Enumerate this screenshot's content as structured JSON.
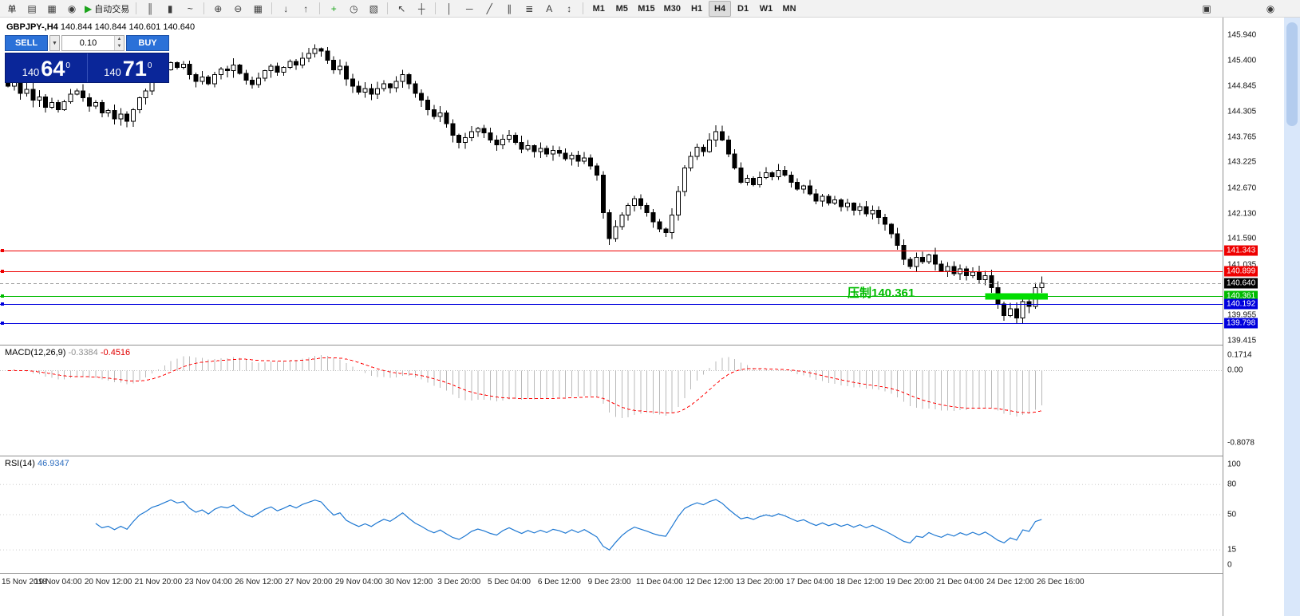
{
  "toolbar": {
    "groups": [
      {
        "items": [
          {
            "name": "orders-menu",
            "label": "单"
          },
          {
            "name": "new-order-icon",
            "glyph": "▤"
          },
          {
            "name": "chart-window-icon",
            "glyph": "▦"
          },
          {
            "name": "info-icon",
            "glyph": "◉"
          },
          {
            "name": "autotrading-button",
            "glyph": "▶",
            "glyph_color": "#1ca41c",
            "label": "自动交易"
          }
        ]
      },
      {
        "items": [
          {
            "name": "bar-chart-icon",
            "glyph": "║"
          },
          {
            "name": "candlestick-icon",
            "glyph": "▮"
          },
          {
            "name": "line-chart-icon",
            "glyph": "~"
          }
        ]
      },
      {
        "items": [
          {
            "name": "zoom-in-icon",
            "glyph": "⊕"
          },
          {
            "name": "zoom-out-icon",
            "glyph": "⊖"
          },
          {
            "name": "tile-windows-icon",
            "glyph": "▦"
          }
        ]
      },
      {
        "items": [
          {
            "name": "arrange-down-icon",
            "glyph": "↓"
          },
          {
            "name": "arrange-up-icon",
            "glyph": "↑"
          }
        ]
      },
      {
        "items": [
          {
            "name": "indicators-icon",
            "glyph": "+",
            "glyph_color": "#1ca41c"
          },
          {
            "name": "periods-icon",
            "glyph": "◷"
          },
          {
            "name": "templates-icon",
            "glyph": "▧"
          }
        ]
      },
      {
        "items": [
          {
            "name": "cursor-icon",
            "glyph": "↖"
          },
          {
            "name": "crosshair-icon",
            "glyph": "┼"
          }
        ]
      },
      {
        "items": [
          {
            "name": "vertical-line-icon",
            "glyph": "│"
          },
          {
            "name": "horizontal-line-icon",
            "glyph": "─"
          },
          {
            "name": "trendline-icon",
            "glyph": "╱"
          },
          {
            "name": "channel-icon",
            "glyph": "∥"
          },
          {
            "name": "fibonacci-icon",
            "glyph": "≣"
          },
          {
            "name": "text-icon",
            "glyph": "A"
          },
          {
            "name": "arrows-icon",
            "glyph": "↕"
          }
        ]
      },
      {
        "items": [
          {
            "name": "timeframe-m1",
            "label": "M1",
            "tf": true
          },
          {
            "name": "timeframe-m5",
            "label": "M5",
            "tf": true
          },
          {
            "name": "timeframe-m15",
            "label": "M15",
            "tf": true
          },
          {
            "name": "timeframe-m30",
            "label": "M30",
            "tf": true
          },
          {
            "name": "timeframe-h1",
            "label": "H1",
            "tf": true
          },
          {
            "name": "timeframe-h4",
            "label": "H4",
            "tf": true,
            "active": true
          },
          {
            "name": "timeframe-d1",
            "label": "D1",
            "tf": true
          },
          {
            "name": "timeframe-w1",
            "label": "W1",
            "tf": true
          },
          {
            "name": "timeframe-mn",
            "label": "MN",
            "tf": true
          }
        ]
      }
    ],
    "right_items": [
      {
        "name": "grid-icon",
        "glyph": "▣"
      },
      {
        "name": "globe-icon",
        "glyph": "◉"
      }
    ]
  },
  "chart": {
    "symbol_label": "GBPJPY-,H4",
    "ohlc_label": " 140.844 140.844 140.601 140.640",
    "annotation": "压制140.361"
  },
  "trade": {
    "sell_label": "SELL",
    "buy_label": "BUY",
    "volume": "0.10",
    "dropdown_glyph": "▼",
    "spin_up": "▲",
    "spin_down": "▼",
    "bid": {
      "prefix": "140",
      "big": "64",
      "sup": "0"
    },
    "ask": {
      "prefix": "140",
      "big": "71",
      "sup": "0"
    }
  },
  "chart_data": {
    "type": "candlestick",
    "symbol": "GBPJPY-",
    "timeframe": "H4",
    "ohlc_display": {
      "open": "140.844",
      "high": "140.844",
      "low": "140.601",
      "close": "140.640"
    },
    "closes": [
      144.85,
      144.95,
      144.7,
      144.78,
      144.55,
      144.62,
      144.4,
      144.5,
      144.35,
      144.52,
      144.68,
      144.75,
      144.6,
      144.42,
      144.5,
      144.28,
      144.33,
      144.15,
      144.25,
      144.1,
      144.35,
      144.6,
      144.75,
      144.95,
      145.05,
      145.2,
      145.35,
      145.25,
      145.32,
      145.1,
      144.95,
      145.05,
      144.9,
      145.1,
      145.22,
      145.18,
      145.3,
      145.12,
      144.98,
      144.88,
      145.02,
      145.18,
      145.28,
      145.15,
      145.25,
      145.38,
      145.3,
      145.45,
      145.55,
      145.65,
      145.6,
      145.4,
      145.2,
      145.28,
      145.0,
      144.85,
      144.72,
      144.8,
      144.68,
      144.8,
      144.9,
      144.82,
      144.95,
      145.1,
      144.9,
      144.7,
      144.55,
      144.35,
      144.2,
      144.28,
      144.05,
      143.8,
      143.65,
      143.75,
      143.88,
      143.95,
      143.85,
      143.7,
      143.6,
      143.72,
      143.8,
      143.65,
      143.5,
      143.58,
      143.45,
      143.52,
      143.4,
      143.48,
      143.42,
      143.3,
      143.38,
      143.25,
      143.32,
      143.15,
      142.95,
      142.15,
      141.6,
      141.85,
      142.1,
      142.3,
      142.45,
      142.3,
      142.15,
      141.95,
      141.8,
      141.72,
      142.1,
      142.6,
      143.1,
      143.35,
      143.55,
      143.45,
      143.7,
      143.88,
      143.7,
      143.4,
      143.1,
      142.8,
      142.88,
      142.75,
      142.9,
      143.0,
      142.92,
      143.05,
      142.95,
      142.8,
      142.65,
      142.72,
      142.55,
      142.4,
      142.5,
      142.35,
      142.42,
      142.28,
      142.35,
      142.2,
      142.28,
      142.12,
      142.2,
      142.05,
      141.9,
      141.7,
      141.45,
      141.15,
      141.0,
      141.2,
      141.1,
      141.25,
      141.05,
      140.9,
      141.0,
      140.85,
      140.95,
      140.8,
      140.88,
      140.72,
      140.8,
      140.55,
      140.2,
      139.95,
      140.1,
      139.9,
      140.25,
      140.15,
      140.55,
      140.64
    ],
    "price_axis_labels": [
      "145.940",
      "145.400",
      "144.845",
      "144.305",
      "143.765",
      "143.225",
      "142.670",
      "142.130",
      "141.590",
      "141.035",
      "139.955",
      "139.415"
    ],
    "hlines": [
      {
        "value": 141.343,
        "label": "141.343",
        "color": "#ee0000"
      },
      {
        "value": 140.899,
        "label": "140.899",
        "color": "#ee0000"
      },
      {
        "value": 140.361,
        "label": "140.361",
        "color": "#00bb00"
      },
      {
        "value": 140.192,
        "label": "140.192",
        "color": "#0000dd"
      },
      {
        "value": 139.798,
        "label": "139.798",
        "color": "#0000dd"
      }
    ],
    "current_price": {
      "value": 140.64,
      "label": "140.640",
      "color": "#000000"
    },
    "zone": {
      "start_index": 156,
      "end_index": 166,
      "value": 140.361,
      "color": "#00dd00",
      "half_height": 4
    },
    "time_labels": [
      "15 Nov 2018",
      "19 Nov 04:00",
      "20 Nov 12:00",
      "21 Nov 20:00",
      "23 Nov 04:00",
      "26 Nov 12:00",
      "27 Nov 20:00",
      "29 Nov 04:00",
      "30 Nov 12:00",
      "3 Dec 20:00",
      "5 Dec 04:00",
      "6 Dec 12:00",
      "9 Dec 23:00",
      "11 Dec 04:00",
      "12 Dec 12:00",
      "13 Dec 20:00",
      "17 Dec 04:00",
      "18 Dec 12:00",
      "19 Dec 20:00",
      "21 Dec 04:00",
      "24 Dec 12:00",
      "26 Dec 16:00"
    ],
    "macd": {
      "label": "MACD(12,26,9)",
      "value": "-0.3384",
      "signal": "-0.4516",
      "params": [
        12,
        26,
        9
      ],
      "axis": [
        "0.1714",
        "0.00",
        "-0.8078"
      ]
    },
    "rsi": {
      "label": "RSI(14)",
      "value": "46.9347",
      "period": 14,
      "axis": [
        "100",
        "80",
        "50",
        "15",
        "0"
      ],
      "levels": [
        80,
        50,
        15
      ]
    }
  }
}
